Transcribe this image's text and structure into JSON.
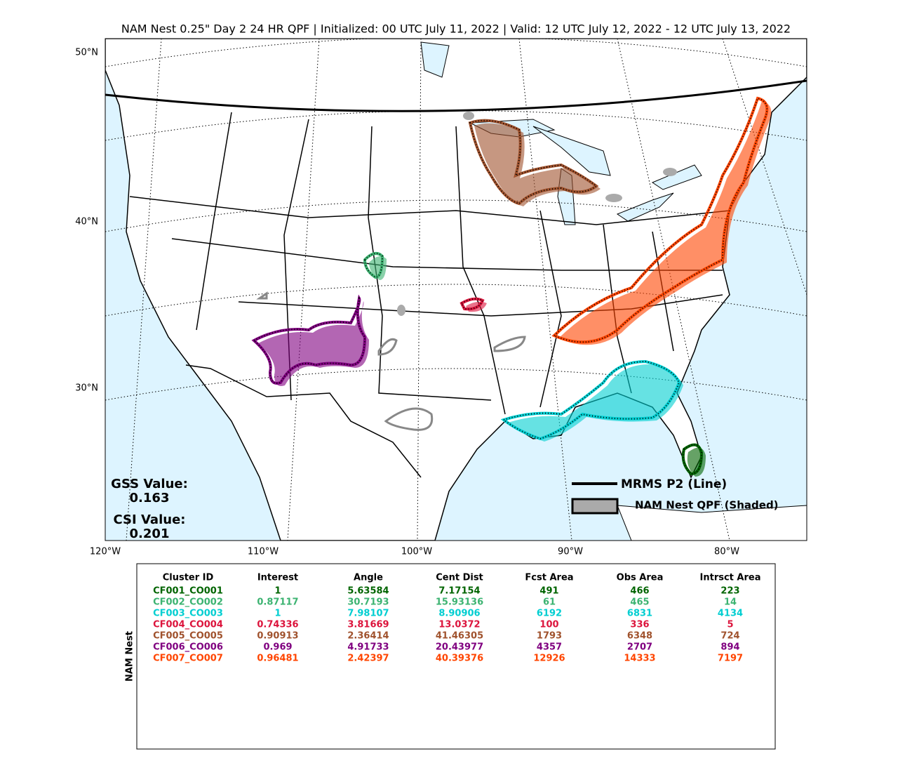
{
  "title": "NAM Nest 0.25\" Day 2 24 HR QPF | Initialized: 00 UTC July 11, 2022 | Valid: 12 UTC July 12, 2022 - 12 UTC July 13, 2022",
  "lat_labels": [
    "50°N",
    "40°N",
    "30°N"
  ],
  "lon_labels": [
    "120°W",
    "110°W",
    "100°W",
    "90°W",
    "80°W"
  ],
  "stats": {
    "gss_label": "GSS Value:",
    "gss_value": "0.163",
    "csi_label": "CSI Value:",
    "csi_value": "0.201"
  },
  "legend": {
    "line_label": "MRMS P2 (Line)",
    "shaded_label": "NAM Nest QPF (Shaded)"
  },
  "table": {
    "side_label": "NAM Nest",
    "headers": [
      "Cluster ID",
      "Interest",
      "Angle",
      "Cent Dist",
      "Fcst Area",
      "Obs Area",
      "Intrsct Area"
    ],
    "rows": [
      {
        "color": "#006400",
        "cells": [
          "CF001_CO001",
          "1",
          "5.63584",
          "7.17154",
          "491",
          "466",
          "223"
        ]
      },
      {
        "color": "#3cb371",
        "cells": [
          "CF002_CO002",
          "0.87117",
          "30.7193",
          "15.93136",
          "61",
          "465",
          "14"
        ]
      },
      {
        "color": "#00ced1",
        "cells": [
          "CF003_CO003",
          "1",
          "7.98107",
          "8.90906",
          "6192",
          "6831",
          "4134"
        ]
      },
      {
        "color": "#dc143c",
        "cells": [
          "CF004_CO004",
          "0.74336",
          "3.81669",
          "13.0372",
          "100",
          "336",
          "5"
        ]
      },
      {
        "color": "#a0522d",
        "cells": [
          "CF005_CO005",
          "0.90913",
          "2.36414",
          "41.46305",
          "1793",
          "6348",
          "724"
        ]
      },
      {
        "color": "#800080",
        "cells": [
          "CF006_CO006",
          "0.969",
          "4.91733",
          "20.43977",
          "4357",
          "2707",
          "894"
        ]
      },
      {
        "color": "#ff4500",
        "cells": [
          "CF007_CO007",
          "0.96481",
          "2.42397",
          "40.39376",
          "12926",
          "14333",
          "7197"
        ]
      }
    ]
  }
}
